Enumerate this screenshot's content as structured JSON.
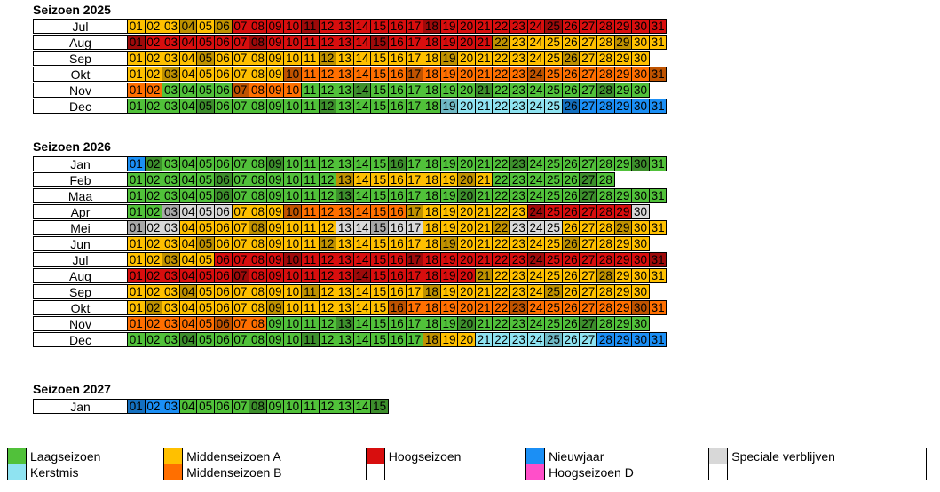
{
  "colors": {
    "L": "#51c13a",
    "A": "#ffc000",
    "B": "#ff6f00",
    "H": "#d80e0e",
    "N": "#1b8ff5",
    "K": "#8fe3f1",
    "S": "#d8d8d8",
    "D": "#ff4fc9"
  },
  "seasons": [
    {
      "title": "Seizoen 2025",
      "months": [
        {
          "name": "Jul",
          "codes": "AAAAAAHHHHHHHHHHHHHHHHHHHHHHHHH",
          "dark": "4,6,11,18,25"
        },
        {
          "name": "Aug",
          "codes": "HHHHHHHHHHHHHHHHHHHHHAAAAAAAAAA",
          "dark": "1,8,15,22,29"
        },
        {
          "name": "Sep",
          "codes": "AAAAAAAAAAAAAAAAAAAAAAAAAAAAAA",
          "dark": "5,12,19,26"
        },
        {
          "name": "Okt",
          "codes": "AAAAAAAAABBBBBBBBBBBBBBBBBBBBBB",
          "dark": "3,10,17,24,31"
        },
        {
          "name": "Nov",
          "codes": "BBLLLLBBBBLLLLLLLLLLLLLLLLLLLL",
          "dark": "7,14,21,28"
        },
        {
          "name": "Dec",
          "codes": "LLLLLLLLLLLLLLLLLLKKKKKKKNNNNNN",
          "dark": "5,12,19,26"
        }
      ]
    },
    {
      "title": "Seizoen 2026",
      "months": [
        {
          "name": "Jan",
          "codes": "NLLLLLLLLLLLLLLLLLLLLLLLLLLLLLL",
          "dark": "2,9,16,23,30"
        },
        {
          "name": "Feb",
          "codes": "LLLLLLLLLLLLAAAAAAAAALLLLLLL",
          "dark": "6,13,20,27"
        },
        {
          "name": "Maa",
          "codes": "LLLLLLLLLLLLLLLLLLLLLLLLLLLLLLL",
          "dark": "6,13,20,27"
        },
        {
          "name": "Apr",
          "codes": "LLSSSSAAABBBBBBBAAAAAAAHHHHHHS",
          "dark": "3,10,17,24"
        },
        {
          "name": "Mei",
          "codes": "SSSAAAAAAAAASSSSSAAAAASSSAAAAAA",
          "dark": "1,8,15,22,29"
        },
        {
          "name": "Jun",
          "codes": "AAAAAAAAAAAAAAAAAAAAAAAAAAAAAA",
          "dark": "5,12,19,26"
        },
        {
          "name": "Jul",
          "codes": "AAAAAHHHHHHHHHHHHHHHHHHHHHHHHHH",
          "dark": "3,10,17,24,31"
        },
        {
          "name": "Aug",
          "codes": "HHHHHHHHHHHHHHHHHHHHAAAAAAAAAAA",
          "dark": "7,14,21,28"
        },
        {
          "name": "Sep",
          "codes": "AAAAAAAAAAAAAAAAAAAAAAAAAAAAAA",
          "dark": "4,11,18,25"
        },
        {
          "name": "Okt",
          "codes": "AAAAAAAAAAAAAAABBBBBBBBBBBBBBBB",
          "dark": "2,9,16,23,30"
        },
        {
          "name": "Nov",
          "codes": "BBBBBBBBLLLLLLLLLLLLLLLLLLLLLL",
          "dark": "6,13,20,27"
        },
        {
          "name": "Dec",
          "codes": "LLLLLLLLLLLLLLLLLAAAKKKKKKKNNNN",
          "dark": "4,11,18,25"
        }
      ]
    },
    {
      "title": "Seizoen 2027",
      "months": [
        {
          "name": "Jan",
          "codes": "NNNLLLLLLLLLLLL",
          "dark": "1,8,15"
        }
      ]
    }
  ],
  "legend": [
    {
      "row": 1,
      "color": "L",
      "label": "Laagseizoen"
    },
    {
      "row": 1,
      "color": "A",
      "label": "Middenseizoen A"
    },
    {
      "row": 1,
      "color": "H",
      "label": "Hoogseizoen"
    },
    {
      "row": 1,
      "color": "N",
      "label": "Nieuwjaar"
    },
    {
      "row": 1,
      "color": "S",
      "label": "Speciale verblijven"
    },
    {
      "row": 2,
      "color": "K",
      "label": "Kerstmis"
    },
    {
      "row": 2,
      "color": "B",
      "label": "Middenseizoen B"
    },
    {
      "row": 2,
      "color": "",
      "label": ""
    },
    {
      "row": 2,
      "color": "D",
      "label": "Hoogseizoen D"
    },
    {
      "row": 2,
      "color": "",
      "label": ""
    }
  ]
}
